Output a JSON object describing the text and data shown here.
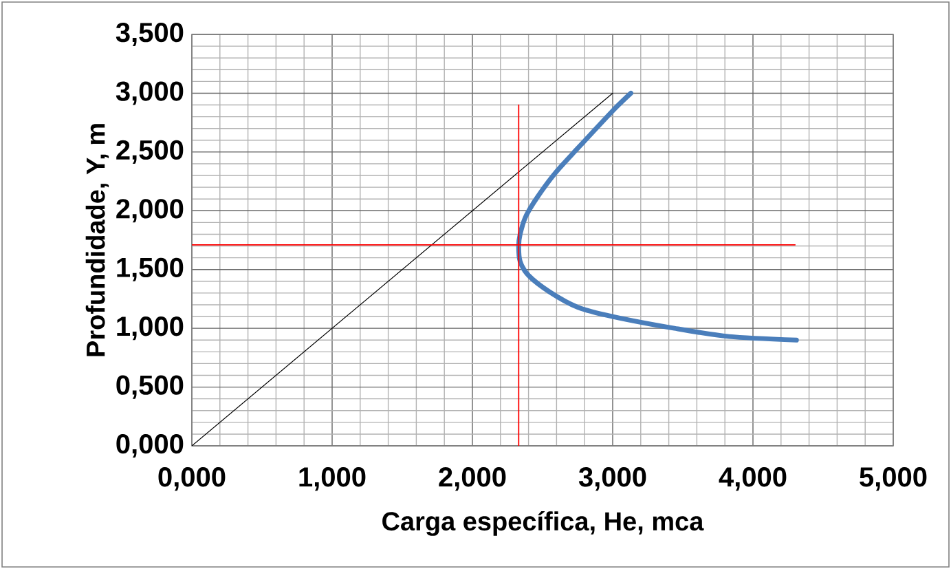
{
  "chart_data": {
    "type": "line",
    "xlabel": "Carga específica, He, mca",
    "ylabel": "Profundidade, Y, m",
    "xlim": [
      0,
      5
    ],
    "ylim": [
      0,
      3.5
    ],
    "xticks": [
      {
        "value": 0,
        "label": "0,000"
      },
      {
        "value": 1,
        "label": "1,000"
      },
      {
        "value": 2,
        "label": "2,000"
      },
      {
        "value": 3,
        "label": "3,000"
      },
      {
        "value": 4,
        "label": "4,000"
      },
      {
        "value": 5,
        "label": "5,000"
      }
    ],
    "yticks": [
      {
        "value": 0,
        "label": "0,000"
      },
      {
        "value": 0.5,
        "label": "0,500"
      },
      {
        "value": 1,
        "label": "1,000"
      },
      {
        "value": 1.5,
        "label": "1,500"
      },
      {
        "value": 2,
        "label": "2,000"
      },
      {
        "value": 2.5,
        "label": "2,500"
      },
      {
        "value": 3,
        "label": "3,000"
      },
      {
        "value": 3.5,
        "label": "3,500"
      }
    ],
    "grid": true,
    "marker": "none",
    "line_style": "solid",
    "series": [
      {
        "color": "#4a7ebb",
        "x": [
          3.13,
          3.0,
          2.75,
          2.59,
          2.46,
          2.38,
          2.34,
          2.33,
          2.34,
          2.4,
          2.55,
          2.75,
          3.0,
          3.44,
          3.83,
          4.31
        ],
        "values": [
          3.0,
          2.85,
          2.53,
          2.32,
          2.11,
          1.95,
          1.8,
          1.7,
          1.57,
          1.45,
          1.31,
          1.18,
          1.1,
          1.0,
          0.93,
          0.9
        ]
      },
      {
        "color": "#000000",
        "x": [
          0,
          3.0
        ],
        "values": [
          0,
          3.0
        ]
      },
      {
        "color": "#ff0000",
        "x": [
          2.33,
          2.33
        ],
        "values": [
          0,
          2.9
        ]
      },
      {
        "color": "#ff0000",
        "x": [
          0,
          4.3
        ],
        "values": [
          1.71,
          1.71
        ]
      }
    ]
  }
}
